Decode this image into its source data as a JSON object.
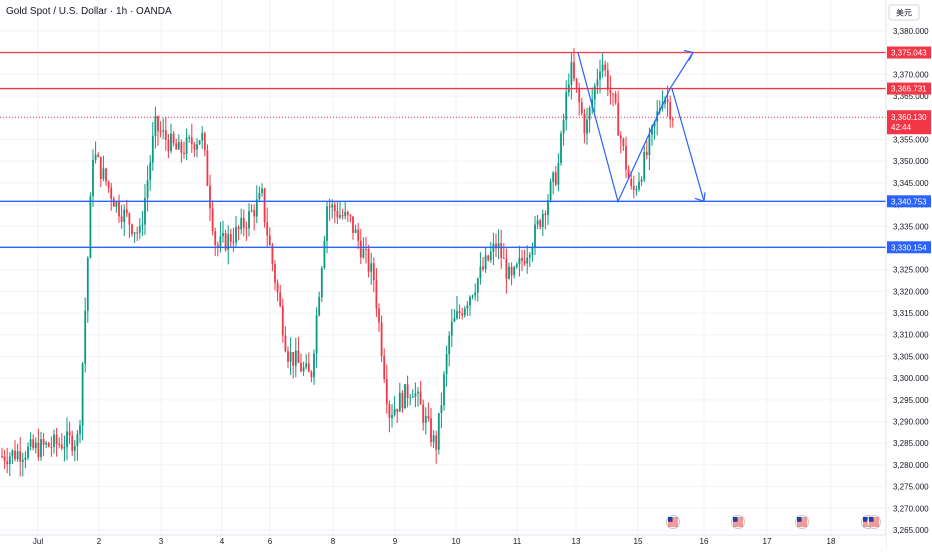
{
  "header": {
    "title": "Gold Spot / U.S. Dollar · 1h · OANDA",
    "currency_button": "美元"
  },
  "colors": {
    "up": "#089981",
    "down": "#f23645",
    "resistance": "#f23645",
    "support": "#2962ff",
    "arrow": "#2962ff",
    "grid": "#f0f3fa",
    "axis_text": "#131722"
  },
  "chart_data": {
    "type": "candlestick",
    "symbol": "XAUUSD",
    "timeframe": "1h",
    "x_tick_labels": [
      "Jul",
      "2",
      "3",
      "4",
      "6",
      "8",
      "9",
      "10",
      "11",
      "13",
      "15",
      "16",
      "17",
      "18"
    ],
    "y_tick_labels": [
      "3,380.000",
      "3,375.000",
      "3,370.000",
      "3,365.000",
      "3,360.000",
      "3,355.000",
      "3,350.000",
      "3,345.000",
      "3,340.000",
      "3,335.000",
      "3,330.000",
      "3,325.000",
      "3,320.000",
      "3,315.000",
      "3,310.000",
      "3,305.000",
      "3,300.000",
      "3,295.000",
      "3,290.000",
      "3,285.000",
      "3,280.000",
      "3,275.000",
      "3,270.000",
      "3,265.000"
    ],
    "ylim": [
      3265,
      3383
    ],
    "close_path": [
      [
        "Jul",
        3282
      ],
      [
        "Jul",
        3286
      ],
      [
        "2",
        3352
      ],
      [
        "2",
        3340
      ],
      [
        "2",
        3333
      ],
      [
        "3",
        3358
      ],
      [
        "3",
        3352
      ],
      [
        "3",
        3356
      ],
      [
        "4",
        3330
      ],
      [
        "4",
        3334
      ],
      [
        "4",
        3342
      ],
      [
        "6",
        3338
      ],
      [
        "6",
        3306
      ],
      [
        "6",
        3300
      ],
      [
        "8",
        3340
      ],
      [
        "8",
        3336
      ],
      [
        "8",
        3323
      ],
      [
        "9",
        3292
      ],
      [
        "9",
        3298
      ],
      [
        "9",
        3284
      ],
      [
        "10",
        3311
      ],
      [
        "10",
        3321
      ],
      [
        "10",
        3331
      ],
      [
        "11",
        3322
      ],
      [
        "11",
        3333
      ],
      [
        "11",
        3348
      ],
      [
        "13",
        3372
      ],
      [
        "13",
        3357
      ],
      [
        "13",
        3374
      ],
      [
        "13",
        3360
      ],
      [
        "15",
        3342
      ],
      [
        "15",
        3352
      ],
      [
        "15",
        3366
      ],
      [
        "15",
        3360
      ]
    ],
    "horizontal_levels": [
      {
        "price": 3375.043,
        "label": "3,375.043",
        "role": "resistance"
      },
      {
        "price": 3366.731,
        "label": "3,366.731",
        "role": "resistance"
      },
      {
        "price": 3340.753,
        "label": "3,340.753",
        "role": "support"
      },
      {
        "price": 3330.154,
        "label": "3,330.154",
        "role": "support"
      }
    ],
    "last_price": {
      "value": 3360.13,
      "label": "3,360.130",
      "countdown": "42:44"
    },
    "drawings": [
      {
        "kind": "zigzag",
        "points": [
          [
            3375.0
          ],
          [
            3340.7
          ],
          [
            3366.7
          ]
        ]
      },
      {
        "kind": "arrow-up-target",
        "target": 3375.043
      },
      {
        "kind": "arrow-down-target",
        "target": 3340.753
      }
    ],
    "event_markers": [
      "us-flag",
      "us-flag",
      "us-flag",
      "us-flag"
    ]
  }
}
